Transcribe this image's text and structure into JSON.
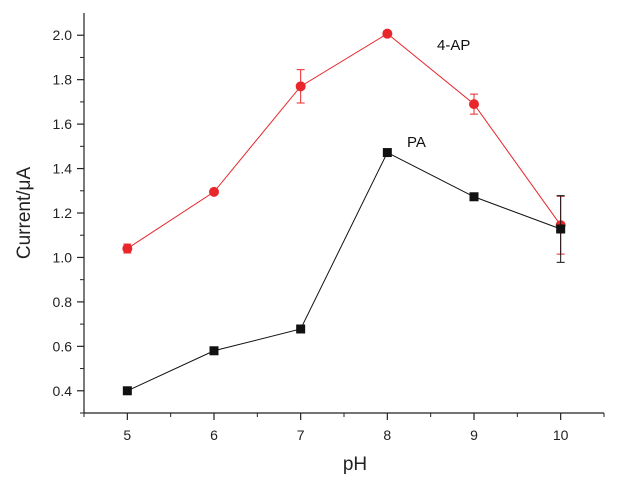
{
  "chart_data": {
    "type": "line",
    "title": "",
    "xlabel": "pH",
    "ylabel": "Current/μA",
    "xlim": [
      4.5,
      10.5
    ],
    "ylim": [
      0.3,
      2.1
    ],
    "x_ticks": [
      5,
      6,
      7,
      8,
      9,
      10
    ],
    "x_tick_labels": [
      "5",
      "6",
      "7",
      "8",
      "9",
      "10"
    ],
    "y_ticks": [
      0.4,
      0.6,
      0.8,
      1.0,
      1.2,
      1.4,
      1.6,
      1.8,
      2.0
    ],
    "y_tick_labels": [
      "0.4",
      "0.6",
      "0.8",
      "1.0",
      "1.2",
      "1.4",
      "1.6",
      "1.8",
      "2.0"
    ],
    "grid": false,
    "series": [
      {
        "name": "4-AP",
        "color": "#e8262b",
        "marker": "circle",
        "x": [
          5,
          6,
          7,
          8,
          9,
          10
        ],
        "values": [
          1.04,
          1.295,
          1.77,
          2.007,
          1.69,
          1.145
        ],
        "error": [
          0.02,
          0.01,
          0.075,
          0.01,
          0.045,
          0.13
        ]
      },
      {
        "name": "PA",
        "color": "#111111",
        "marker": "square",
        "x": [
          5,
          6,
          7,
          8,
          9,
          10
        ],
        "values": [
          0.4,
          0.58,
          0.678,
          1.472,
          1.273,
          1.128
        ],
        "error": [
          0,
          0,
          0,
          0,
          0,
          0.15
        ]
      }
    ]
  }
}
